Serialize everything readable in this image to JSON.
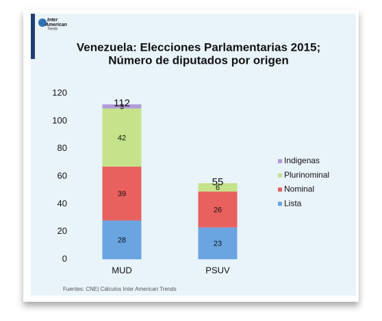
{
  "chart_data": {
    "type": "stacked-bar",
    "logo": [
      "Inter",
      "American",
      "Trends"
    ],
    "title": [
      "Venezuela: Elecciones  Parlamentarias 2015;",
      "Número de diputados por origen"
    ],
    "categories": [
      "MUD",
      "PSUV"
    ],
    "series": [
      {
        "name": "Lista",
        "color": "#6aa5e2",
        "values": [
          28,
          23
        ]
      },
      {
        "name": "Nominal",
        "color": "#e8615f",
        "values": [
          39,
          26
        ]
      },
      {
        "name": "Plurinominal",
        "color": "#c5e38a",
        "values": [
          42,
          6
        ]
      },
      {
        "name": "Indigenas",
        "color": "#b49bd9",
        "values": [
          3,
          null
        ]
      }
    ],
    "totals": [
      112,
      55
    ],
    "ylim": [
      0,
      120
    ],
    "yticks": [
      0,
      20,
      40,
      60,
      80,
      100,
      120
    ],
    "grid": false,
    "legend": "right",
    "source": "Fuentes: CNE| Cálculos Inter American Trends"
  }
}
